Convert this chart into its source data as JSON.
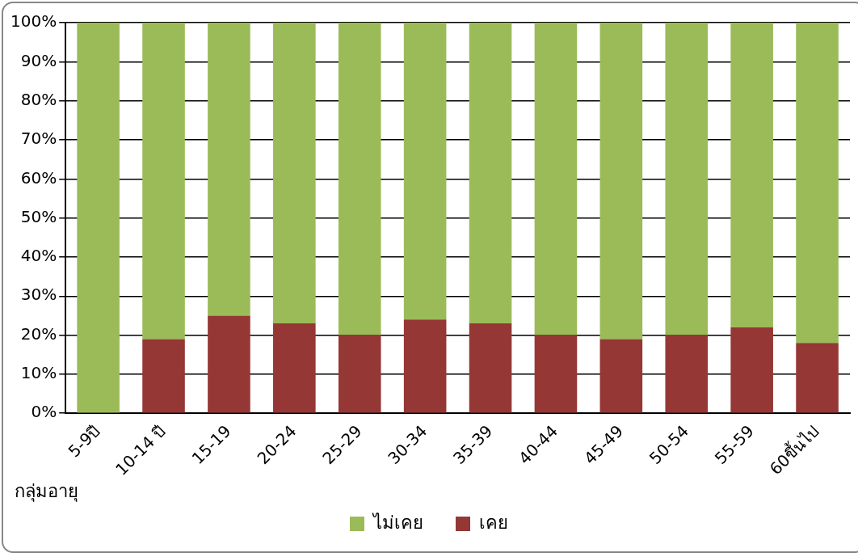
{
  "chart_data": {
    "type": "bar",
    "stacked": true,
    "xlabel": "กลุ่มอายุ",
    "categories": [
      "5-9ปี",
      "10-14 ปี",
      "15-19",
      "20-24",
      "25-29",
      "30-34",
      "35-39",
      "40-44",
      "45-49",
      "50-54",
      "55-59",
      "60ขึ้นไป"
    ],
    "series": [
      {
        "name": "เคย",
        "color": "#953735",
        "values": [
          0,
          19,
          25,
          23,
          20,
          24,
          23,
          20,
          19,
          20,
          22,
          18
        ]
      },
      {
        "name": "ไม่เคย",
        "color": "#9bbb59",
        "values": [
          100,
          81,
          75,
          77,
          80,
          76,
          77,
          80,
          81,
          80,
          78,
          82
        ]
      }
    ],
    "ylim": [
      0,
      100
    ],
    "yticks": [
      {
        "value": 0,
        "label": "0%"
      },
      {
        "value": 10,
        "label": "10%"
      },
      {
        "value": 20,
        "label": "20%"
      },
      {
        "value": 30,
        "label": "30%"
      },
      {
        "value": 40,
        "label": "40%"
      },
      {
        "value": 50,
        "label": "50%"
      },
      {
        "value": 60,
        "label": "60%"
      },
      {
        "value": 70,
        "label": "70%"
      },
      {
        "value": 80,
        "label": "80%"
      },
      {
        "value": 90,
        "label": "90%"
      },
      {
        "value": 100,
        "label": "100%"
      }
    ],
    "grid": "y",
    "legend": "bottom"
  }
}
